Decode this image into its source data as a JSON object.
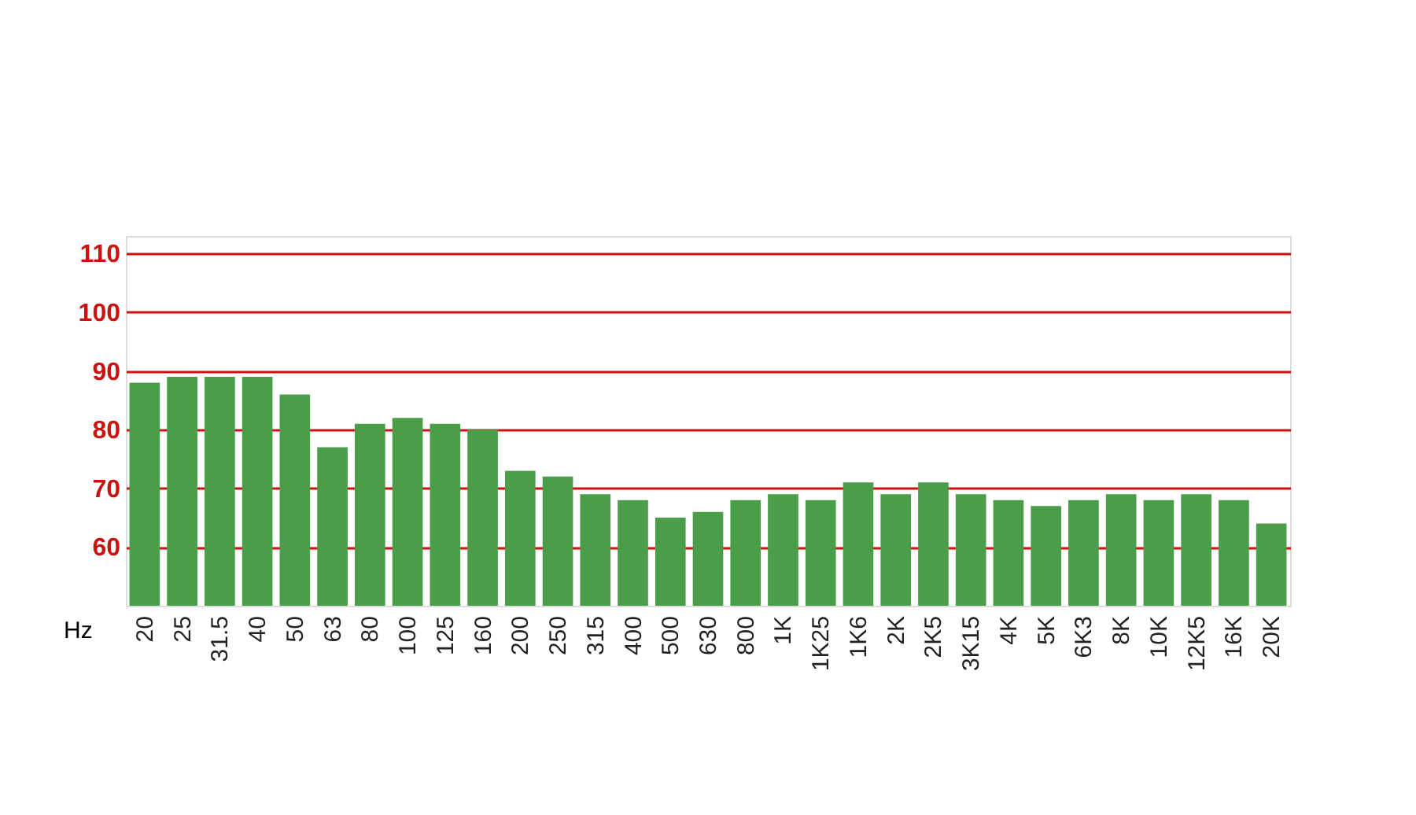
{
  "chart_data": {
    "type": "bar",
    "xlabel": "Hz",
    "categories": [
      "20",
      "25",
      "31.5",
      "40",
      "50",
      "63",
      "80",
      "100",
      "125",
      "160",
      "200",
      "250",
      "315",
      "400",
      "500",
      "630",
      "800",
      "1K",
      "1K25",
      "1K6",
      "2K",
      "2K5",
      "3K15",
      "4K",
      "5K",
      "6K3",
      "8K",
      "10K",
      "12K5",
      "16K",
      "20K"
    ],
    "values": [
      88,
      89,
      89,
      89,
      86,
      77,
      81,
      82,
      81,
      80,
      73,
      72,
      69,
      68,
      65,
      66,
      68,
      69,
      68,
      71,
      69,
      71,
      69,
      68,
      67,
      68,
      69,
      68,
      69,
      68,
      64
    ],
    "color": "#4a9e4a",
    "ylim": [
      50,
      113
    ],
    "yticks": [
      60,
      70,
      80,
      90,
      100,
      110
    ],
    "grid": "y"
  }
}
